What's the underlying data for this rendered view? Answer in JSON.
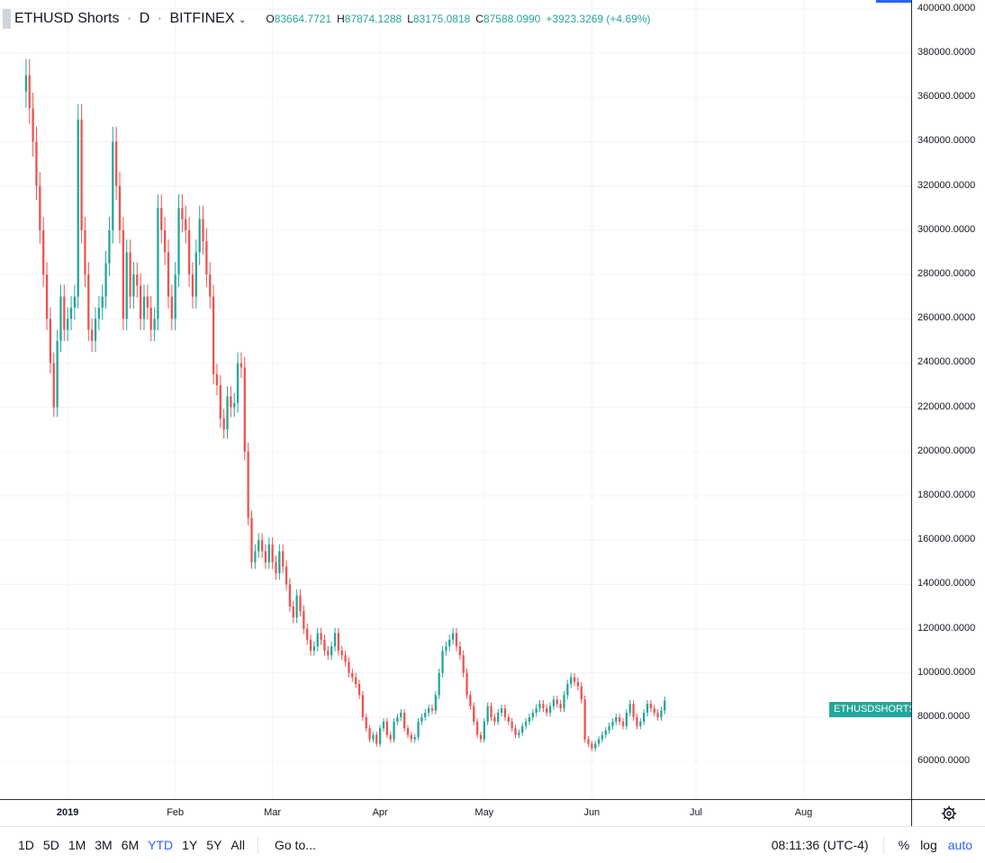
{
  "legend": {
    "symbol": "ETHUSD Shorts",
    "interval": "D",
    "exchange": "BITFINEX",
    "open_k": "O",
    "open_v": "83664.7721",
    "high_k": "H",
    "high_v": "87874.1288",
    "low_k": "L",
    "low_v": "83175.0818",
    "close_k": "C",
    "close_v": "87588.0990",
    "change": "+3923.3269 (+4.69%)"
  },
  "series_tag": "ETHUSDSHORTS",
  "toolbar": {
    "timeframes": [
      "1D",
      "5D",
      "1M",
      "3M",
      "6M",
      "YTD",
      "1Y",
      "5Y",
      "All"
    ],
    "active": "YTD",
    "goto": "Go to...",
    "clock": "08:11:36 (UTC-4)",
    "percent": "%",
    "log": "log",
    "auto": "auto"
  },
  "colors": {
    "up": "#26a69a",
    "down": "#ef5350",
    "grid": "#f0f3fa",
    "accent": "#2962ff"
  },
  "chart_data": {
    "type": "candlestick",
    "y_ticks": [
      "400000.0000",
      "380000.0000",
      "360000.0000",
      "340000.0000",
      "320000.0000",
      "300000.0000",
      "280000.0000",
      "260000.0000",
      "240000.0000",
      "220000.0000",
      "200000.0000",
      "180000.0000",
      "160000.0000",
      "140000.0000",
      "120000.0000",
      "100000.0000",
      "80000.0000",
      "60000.0000"
    ],
    "ylim": [
      43000,
      404000
    ],
    "x_labels": [
      {
        "label": "2019",
        "day": 12,
        "year": true
      },
      {
        "label": "Feb",
        "day": 43
      },
      {
        "label": "Mar",
        "day": 71
      },
      {
        "label": "Apr",
        "day": 102
      },
      {
        "label": "May",
        "day": 132
      },
      {
        "label": "Jun",
        "day": 163
      },
      {
        "label": "Jul",
        "day": 193
      },
      {
        "label": "Aug",
        "day": 224
      }
    ],
    "xlim": [
      -7.5,
      255
    ],
    "close_series": [
      370000,
      355000,
      340000,
      320000,
      300000,
      280000,
      260000,
      240000,
      220000,
      250000,
      270000,
      255000,
      260000,
      265000,
      270000,
      350000,
      300000,
      280000,
      255000,
      250000,
      260000,
      265000,
      270000,
      285000,
      300000,
      340000,
      320000,
      300000,
      260000,
      290000,
      270000,
      280000,
      275000,
      260000,
      270000,
      265000,
      255000,
      260000,
      310000,
      300000,
      290000,
      270000,
      260000,
      280000,
      310000,
      305000,
      300000,
      280000,
      270000,
      290000,
      305000,
      295000,
      280000,
      270000,
      235000,
      230000,
      215000,
      210000,
      225000,
      220000,
      222000,
      240000,
      238000,
      200000,
      170000,
      150000,
      155000,
      160000,
      155000,
      150000,
      158000,
      150000,
      145000,
      155000,
      148000,
      140000,
      130000,
      125000,
      135000,
      128000,
      120000,
      115000,
      110000,
      112000,
      118000,
      115000,
      110000,
      108000,
      112000,
      118000,
      110000,
      108000,
      105000,
      100000,
      98000,
      95000,
      90000,
      80000,
      75000,
      70000,
      72000,
      68000,
      75000,
      78000,
      72000,
      70000,
      78000,
      80000,
      82000,
      75000,
      72000,
      70000,
      71000,
      78000,
      80000,
      82000,
      84000,
      83000,
      90000,
      100000,
      110000,
      112000,
      115000,
      118000,
      112000,
      108000,
      100000,
      90000,
      85000,
      78000,
      72000,
      70000,
      78000,
      85000,
      80000,
      78000,
      82000,
      84000,
      80000,
      78000,
      75000,
      72000,
      73000,
      76000,
      78000,
      80000,
      82000,
      84000,
      86000,
      84000,
      82000,
      85000,
      88000,
      86000,
      84000,
      90000,
      95000,
      98000,
      96000,
      94000,
      88000,
      70000,
      68000,
      66000,
      68000,
      70000,
      72000,
      74000,
      76000,
      78000,
      80000,
      78000,
      76000,
      82000,
      86000,
      80000,
      76000,
      78000,
      82000,
      86000,
      84000,
      82000,
      80000,
      83000,
      87588
    ],
    "markers": [
      {
        "day": 0,
        "v": 370000
      },
      {
        "day": 5,
        "v": 280000
      },
      {
        "day": 8,
        "v": 220000
      },
      {
        "day": 11,
        "v": 270000
      },
      {
        "day": 14,
        "v": 350000
      },
      {
        "day": 17,
        "v": 255000
      },
      {
        "day": 24,
        "v": 340000
      },
      {
        "day": 27,
        "v": 260000
      },
      {
        "day": 31,
        "v": 290000
      },
      {
        "day": 36,
        "v": 255000
      },
      {
        "day": 38,
        "v": 310000
      },
      {
        "day": 43,
        "v": 260000
      },
      {
        "day": 45,
        "v": 310000
      },
      {
        "day": 50,
        "v": 305000
      },
      {
        "day": 55,
        "v": 235000
      },
      {
        "day": 58,
        "v": 210000
      },
      {
        "day": 62,
        "v": 240000
      },
      {
        "day": 64,
        "v": 200000
      },
      {
        "day": 65,
        "v": 170000
      },
      {
        "day": 67,
        "v": 150000
      },
      {
        "day": 71,
        "v": 158000
      },
      {
        "day": 76,
        "v": 130000
      },
      {
        "day": 78,
        "v": 125000
      },
      {
        "day": 84,
        "v": 110000
      },
      {
        "day": 90,
        "v": 118000
      },
      {
        "day": 96,
        "v": 98000
      },
      {
        "day": 100,
        "v": 80000
      },
      {
        "day": 103,
        "v": 72000
      },
      {
        "day": 111,
        "v": 82000
      },
      {
        "day": 116,
        "v": 70000
      },
      {
        "day": 124,
        "v": 84000
      },
      {
        "day": 126,
        "v": 90000
      },
      {
        "day": 132,
        "v": 112000
      },
      {
        "day": 136,
        "v": 118000
      },
      {
        "day": 140,
        "v": 85000
      },
      {
        "day": 143,
        "v": 72000
      },
      {
        "day": 147,
        "v": 85000
      },
      {
        "day": 152,
        "v": 80000
      },
      {
        "day": 157,
        "v": 72000
      },
      {
        "day": 164,
        "v": 80000
      },
      {
        "day": 170,
        "v": 86000
      },
      {
        "day": 177,
        "v": 98000
      },
      {
        "day": 181,
        "v": 90000
      },
      {
        "day": 183,
        "v": 70000
      },
      {
        "day": 186,
        "v": 66000
      },
      {
        "day": 192,
        "v": 76000
      },
      {
        "day": 196,
        "v": 78000
      },
      {
        "day": 201,
        "v": 86000
      },
      {
        "day": 203,
        "v": 80000
      },
      {
        "day": 206,
        "v": 78000
      },
      {
        "day": 210,
        "v": 84000
      },
      {
        "day": 214,
        "v": 80000
      },
      {
        "day": 223,
        "v": 87588
      }
    ]
  }
}
